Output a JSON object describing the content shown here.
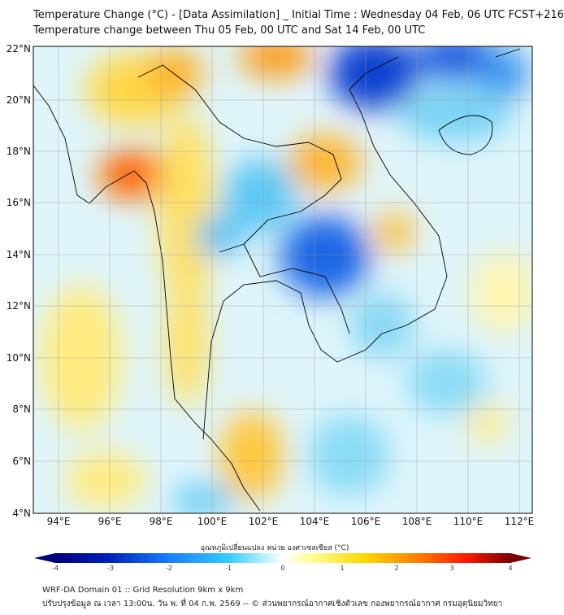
{
  "header": {
    "title": "Temperature Change (°C) - [Data Assimilation] _ Initial Time : Wednesday 04 Feb, 06 UTC FCST+216",
    "subtitle": "Temperature change between Thu 05 Feb, 00 UTC and Sat 14 Feb, 00 UTC"
  },
  "axes": {
    "lat_labels": [
      "22°N",
      "20°N",
      "18°N",
      "16°N",
      "14°N",
      "12°N",
      "10°N",
      "8°N",
      "6°N",
      "4°N"
    ],
    "lon_labels": [
      "94°E",
      "96°E",
      "98°E",
      "100°E",
      "102°E",
      "104°E",
      "106°E",
      "108°E",
      "110°E",
      "112°E"
    ]
  },
  "colorbar": {
    "label": "อุณหภูมิเปลี่ยนแปลง หน่วย องศาเซลเซียส (°C)",
    "ticks": [
      "-4",
      "-3",
      "-2",
      "-1",
      "0",
      "1",
      "2",
      "3",
      "4"
    ],
    "range": [
      -4,
      4
    ],
    "colors": [
      "#00007a",
      "#0033cc",
      "#1a8cff",
      "#33ccff",
      "#ccf5ff",
      "#ffffff",
      "#ffff99",
      "#ffd700",
      "#ff8c00",
      "#ff1a00",
      "#7a0000"
    ]
  },
  "footer": {
    "line1": "WRF-DA Domain 01 :: Grid Resolution 9km x 9km",
    "line2": "ปรับปรุงข้อมูล ณ เวลา 13:00น. วัน พ. ที่ 04 ก.พ. 2569 -- © ส่วนพยากรณ์อากาศเชิงตัวเลข กองพยากรณ์อากาศ กรมอุตุนิยมวิทยา"
  }
}
